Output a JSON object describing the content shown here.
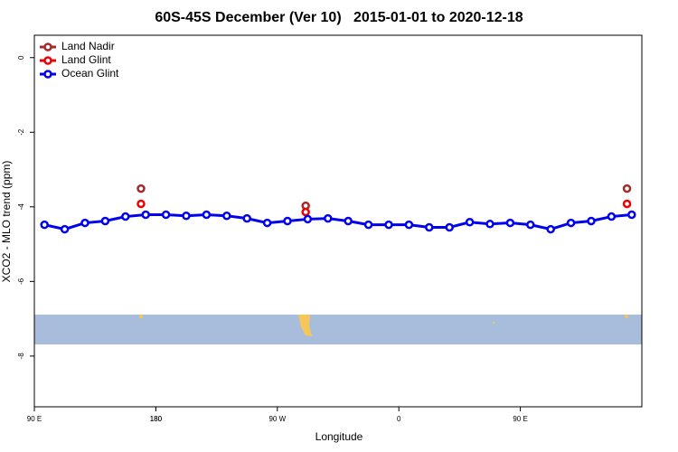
{
  "chart_data": {
    "type": "line",
    "title": "60S-45S December (Ver 10)   2015-01-01 to 2020-12-18",
    "xlabel": "Longitude",
    "ylabel": "XCO2 - MLO trend (ppm)",
    "xlim": [
      90,
      540
    ],
    "xticks": [
      {
        "value": 90,
        "label": "90 E"
      },
      180,
      {
        "value": 270,
        "label": "90 W"
      },
      {
        "value": 360,
        "label": "0"
      },
      {
        "value": 450,
        "label": "90 E"
      },
      180.0001
    ],
    "ylim": [
      -9.36,
      0.6
    ],
    "yticks": [
      0,
      -2,
      -4,
      -6,
      -8
    ],
    "legend": "top-left",
    "series": [
      {
        "name": "Land Nadir",
        "color": "#a52a2a",
        "line": false,
        "x": [
          169,
          291,
          529
        ],
        "values": [
          -3.51,
          -3.97,
          -3.51
        ]
      },
      {
        "name": "Land Glint",
        "color": "#ee0000",
        "line": false,
        "x": [
          169,
          291,
          529
        ],
        "values": [
          -3.92,
          -4.14,
          -3.92
        ]
      },
      {
        "name": "Ocean Glint",
        "color": "#0000ee",
        "line": true,
        "x": [
          97.5,
          112.5,
          127.5,
          142.5,
          157.5,
          172.5,
          187.5,
          202.5,
          217.5,
          232.5,
          247.5,
          262.5,
          277.5,
          292.5,
          307.5,
          322.5,
          337.5,
          352.5,
          367.5,
          382.5,
          397.5,
          412.5,
          427.5,
          442.5,
          457.5,
          472.5,
          487.5,
          502.5,
          517.5,
          532.5
        ],
        "values": [
          -4.48,
          -4.6,
          -4.43,
          -4.38,
          -4.26,
          -4.21,
          -4.21,
          -4.24,
          -4.21,
          -4.24,
          -4.31,
          -4.43,
          -4.38,
          -4.33,
          -4.31,
          -4.38,
          -4.48,
          -4.48,
          -4.48,
          -4.55,
          -4.55,
          -4.41,
          -4.46,
          -4.43,
          -4.48,
          -4.6,
          -4.43,
          -4.38,
          -4.26,
          -4.21
        ]
      }
    ]
  }
}
